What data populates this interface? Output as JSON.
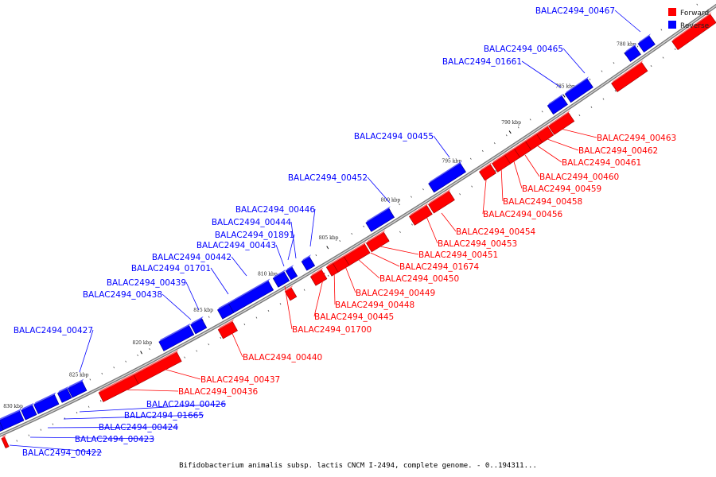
{
  "caption": "Bifidobacterium animalis subsp. lactis CNCM I-2494, complete genome. - 0..194311...",
  "legend": {
    "items": [
      {
        "label": "Forward",
        "color": "#ff0000"
      },
      {
        "label": "Reverse",
        "color": "#0000ff"
      }
    ]
  },
  "colors": {
    "forward": "#ff0000",
    "reverse": "#0000ff",
    "backbone": "#888888"
  },
  "ticks": [
    "780 kbp",
    "785 kbp",
    "790 kbp",
    "795 kbp",
    "800 kbp",
    "805 kbp",
    "810 kbp",
    "815 kbp",
    "820 kbp",
    "825 kbp",
    "830 kbp"
  ],
  "reverse_genes": [
    "BALAC2494_00467",
    "BALAC2494_00465",
    "BALAC2494_01661",
    "BALAC2494_00455",
    "BALAC2494_00452",
    "BALAC2494_00446",
    "BALAC2494_00444",
    "BALAC2494_01891",
    "BALAC2494_00443",
    "BALAC2494_00442",
    "BALAC2494_01701",
    "BALAC2494_00439",
    "BALAC2494_00438",
    "BALAC2494_00427",
    "BALAC2494_00426",
    "BALAC2494_01665",
    "BALAC2494_00424",
    "BALAC2494_00423",
    "BALAC2494_00422"
  ],
  "forward_genes": [
    "BALAC2494_00463",
    "BALAC2494_00462",
    "BALAC2494_00461",
    "BALAC2494_00460",
    "BALAC2494_00459",
    "BALAC2494_00458",
    "BALAC2494_00456",
    "BALAC2494_00454",
    "BALAC2494_00453",
    "BALAC2494_00451",
    "BALAC2494_01674",
    "BALAC2494_00450",
    "BALAC2494_00449",
    "BALAC2494_00448",
    "BALAC2494_00445",
    "BALAC2494_01700",
    "BALAC2494_00440",
    "BALAC2494_00437",
    "BALAC2494_00436"
  ]
}
